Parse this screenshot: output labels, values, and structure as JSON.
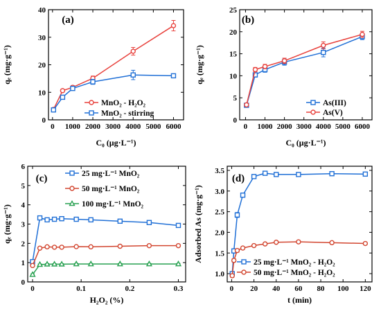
{
  "chart_data": [
    {
      "type": "line",
      "panel_label": "(a)",
      "xlabel": "C₀ (μg·L⁻¹)",
      "ylabel": "qₑ (mg·g⁻¹)",
      "xlim": [
        -200,
        6500
      ],
      "ylim": [
        0,
        40
      ],
      "xticks": [
        0,
        1000,
        2000,
        3000,
        4000,
        5000,
        6000
      ],
      "yticks": [
        0,
        10,
        20,
        30,
        40
      ],
      "legend_position": "bottom-right",
      "series": [
        {
          "name": "MnO₂ - H₂O₂",
          "color": "#e8413c",
          "marker": "circle",
          "x": [
            50,
            500,
            1000,
            2000,
            4000,
            6000
          ],
          "y": [
            3.8,
            10.6,
            11.8,
            15.1,
            24.9,
            34.2
          ],
          "err": [
            0.4,
            0.5,
            0.6,
            0.8,
            1.4,
            1.9
          ]
        },
        {
          "name": "MnO₂ - stirring",
          "color": "#1f6fd6",
          "marker": "square",
          "x": [
            50,
            500,
            1000,
            2000,
            4000,
            6000
          ],
          "y": [
            3.6,
            8.2,
            11.4,
            13.8,
            16.3,
            16.0
          ],
          "err": [
            0.4,
            0.6,
            0.6,
            0.9,
            1.7,
            0.7
          ]
        }
      ]
    },
    {
      "type": "line",
      "panel_label": "(b)",
      "xlabel": "C₀ (μg·L⁻¹)",
      "ylabel": "qₑ (mg·g⁻¹)",
      "xlim": [
        -300,
        6500
      ],
      "ylim": [
        0,
        25
      ],
      "xticks": [
        0,
        1000,
        2000,
        3000,
        4000,
        5000,
        6000
      ],
      "yticks": [
        0,
        5,
        10,
        15,
        20,
        25
      ],
      "legend_position": "bottom-right",
      "series": [
        {
          "name": "As(III)",
          "color": "#1f6fd6",
          "marker": "square",
          "x": [
            50,
            500,
            1000,
            2000,
            4000,
            6000
          ],
          "y": [
            3.3,
            10.2,
            11.4,
            13.1,
            15.3,
            18.9
          ],
          "err": [
            0.3,
            0.5,
            0.6,
            0.7,
            1.0,
            0.7
          ]
        },
        {
          "name": "As(V)",
          "color": "#e8413c",
          "marker": "circle",
          "x": [
            50,
            500,
            1000,
            2000,
            4000,
            6000
          ],
          "y": [
            3.4,
            11.4,
            12.1,
            13.4,
            16.9,
            19.4
          ],
          "err": [
            0.3,
            0.5,
            0.5,
            0.6,
            0.8,
            0.7
          ]
        }
      ]
    },
    {
      "type": "line",
      "panel_label": "(c)",
      "xlabel": "H₂O₂ (%)",
      "ylabel": "qₑ (mg·g⁻¹)",
      "xlim": [
        -0.01,
        0.315
      ],
      "ylim": [
        0,
        6
      ],
      "xticks": [
        0.0,
        0.1,
        0.2,
        0.3
      ],
      "yticks": [
        0,
        1,
        2,
        3,
        4,
        5,
        6
      ],
      "legend_position": "top-right",
      "series": [
        {
          "name": "25 mg·L⁻¹ MnO₂",
          "color": "#1f6fd6",
          "marker": "square",
          "x": [
            0,
            0.015,
            0.03,
            0.045,
            0.06,
            0.09,
            0.12,
            0.18,
            0.24,
            0.3
          ],
          "y": [
            1.05,
            3.32,
            3.22,
            3.25,
            3.28,
            3.25,
            3.22,
            3.15,
            3.08,
            2.93
          ],
          "err": [
            0.06,
            0.07,
            0.06,
            0.05,
            0.05,
            0.06,
            0.05,
            0.06,
            0.06,
            0.06
          ]
        },
        {
          "name": "50 mg·L⁻¹ MnO₂",
          "color": "#d2452f",
          "marker": "circle",
          "x": [
            0,
            0.015,
            0.03,
            0.045,
            0.06,
            0.09,
            0.12,
            0.18,
            0.24,
            0.3
          ],
          "y": [
            0.85,
            1.75,
            1.82,
            1.8,
            1.8,
            1.83,
            1.82,
            1.85,
            1.88,
            1.88
          ],
          "err": [
            0.05,
            0.04,
            0.04,
            0.04,
            0.04,
            0.04,
            0.04,
            0.04,
            0.04,
            0.04
          ]
        },
        {
          "name": "100 mg·L⁻¹ MnO₂",
          "color": "#27a050",
          "marker": "triangle",
          "x": [
            0,
            0.015,
            0.03,
            0.045,
            0.06,
            0.09,
            0.12,
            0.18,
            0.24,
            0.3
          ],
          "y": [
            0.38,
            0.9,
            0.92,
            0.92,
            0.92,
            0.93,
            0.93,
            0.93,
            0.93,
            0.93
          ],
          "err": [
            0.04,
            0.03,
            0.03,
            0.03,
            0.03,
            0.03,
            0.03,
            0.03,
            0.03,
            0.03
          ]
        }
      ]
    },
    {
      "type": "line",
      "panel_label": "(d)",
      "xlabel": "t (min)",
      "ylabel": "Adsorbed As (mg·g⁻¹)",
      "xlim": [
        -4,
        126
      ],
      "ylim": [
        0.8,
        3.6
      ],
      "xticks": [
        0,
        20,
        40,
        60,
        80,
        100,
        120
      ],
      "yticks": [
        1.0,
        1.5,
        2.0,
        2.5,
        3.0,
        3.5
      ],
      "ytick_labels": [
        "1.0",
        "1.5",
        "2.0",
        "2.5",
        "3.0",
        "3.5"
      ],
      "legend_position": "bottom-right",
      "series": [
        {
          "name": "25 mg·L⁻¹ MnO₂ - H₂O₂",
          "color": "#1f6fd6",
          "marker": "square",
          "x": [
            0.5,
            2,
            5,
            10,
            20,
            30,
            40,
            60,
            90,
            120
          ],
          "y": [
            1.0,
            1.55,
            2.42,
            2.9,
            3.35,
            3.43,
            3.4,
            3.4,
            3.42,
            3.41
          ],
          "err": [
            0.04,
            0.05,
            0.06,
            0.05,
            0.05,
            0.04,
            0.03,
            0.03,
            0.03,
            0.03
          ]
        },
        {
          "name": "50 mg·L⁻¹ MnO₂ - H₂O₂",
          "color": "#d2452f",
          "marker": "circle",
          "x": [
            0.5,
            2,
            5,
            10,
            20,
            30,
            40,
            60,
            90,
            120
          ],
          "y": [
            0.95,
            1.32,
            1.56,
            1.62,
            1.68,
            1.72,
            1.76,
            1.77,
            1.75,
            1.73
          ],
          "err": [
            0.04,
            0.04,
            0.04,
            0.03,
            0.03,
            0.03,
            0.03,
            0.03,
            0.03,
            0.03
          ]
        }
      ]
    }
  ]
}
